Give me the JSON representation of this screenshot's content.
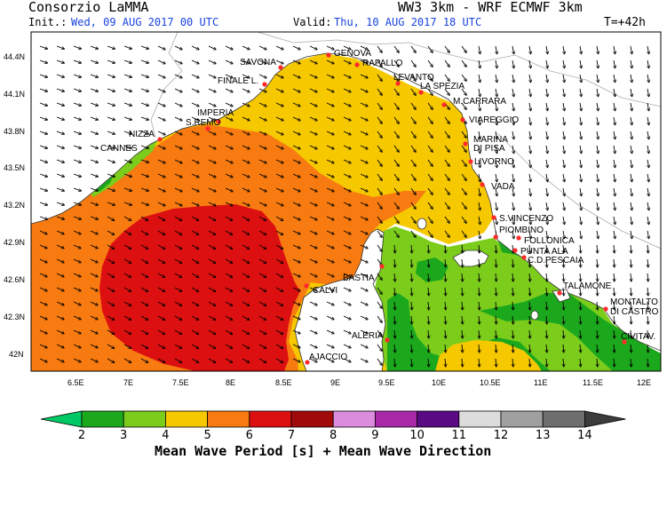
{
  "header": {
    "org": "Consorzio LaMMA",
    "init_label": "Init.:",
    "init_value": "Wed, 09 AUG 2017  00 UTC",
    "model": "WW3 3km - WRF ECMWF 3km",
    "valid_label": "Valid:",
    "valid_value": "Thu, 10 AUG 2017  18 UTC",
    "forecast_step": "T=+42h"
  },
  "colors": {
    "header_blue": "#1a44e0",
    "sea_4_5": "#f6c800",
    "sea_5_6": "#f77b10",
    "sea_6_7": "#dc1010",
    "sea_3_4": "#7ccc1c",
    "sea_2_3": "#1ca81c",
    "land": "#ffffff",
    "city_dot": "#ff2a2a"
  },
  "map": {
    "lat_ticks": [
      "44.4N",
      "44.1N",
      "43.8N",
      "43.5N",
      "43.2N",
      "42.9N",
      "42.6N",
      "42.3N",
      "42N"
    ],
    "lon_ticks": [
      "6.5E",
      "7E",
      "7.5E",
      "8E",
      "8.5E",
      "9E",
      "9.5E",
      "10E",
      "10.5E",
      "11E",
      "11.5E",
      "12E"
    ],
    "cities": [
      {
        "name": "GENOVA"
      },
      {
        "name": "SAVONA"
      },
      {
        "name": "RAPALLO"
      },
      {
        "name": "LEVANTO"
      },
      {
        "name": "FINALE L."
      },
      {
        "name": "LA SPEZIA"
      },
      {
        "name": "M.CARRARA"
      },
      {
        "name": "IMPERIA"
      },
      {
        "name": "S.REMO"
      },
      {
        "name": "VIAREGGIO"
      },
      {
        "name": "NIZZA"
      },
      {
        "name": "MARINA"
      },
      {
        "name": "DI PISA"
      },
      {
        "name": "CANNES"
      },
      {
        "name": "LIVORNO"
      },
      {
        "name": "VADA"
      },
      {
        "name": "S.VINCENZO"
      },
      {
        "name": "PIOMBINO"
      },
      {
        "name": "FOLLONICA"
      },
      {
        "name": "PUNTA ALA"
      },
      {
        "name": "BASTIA"
      },
      {
        "name": "C.D.PESCAIA"
      },
      {
        "name": "CALVI"
      },
      {
        "name": "TALAMONE"
      },
      {
        "name": "MONTALTO"
      },
      {
        "name": "DI CASTRO"
      },
      {
        "name": "ALERIA"
      },
      {
        "name": "CIVITAV."
      },
      {
        "name": "AJACCIO"
      }
    ]
  },
  "legend": {
    "values": [
      "2",
      "3",
      "4",
      "5",
      "6",
      "7",
      "8",
      "9",
      "10",
      "11",
      "12",
      "13",
      "14"
    ],
    "colors": [
      "#00c864",
      "#1ca81c",
      "#7ccc1c",
      "#f6c800",
      "#f77b10",
      "#dc1010",
      "#a00a0a",
      "#dc8cdc",
      "#a828a8",
      "#5a0a82",
      "#dcdcdc",
      "#a0a0a0",
      "#6e6e6e",
      "#3c3c3c"
    ],
    "title": "Mean Wave Period [s] + Mean Wave Direction"
  }
}
